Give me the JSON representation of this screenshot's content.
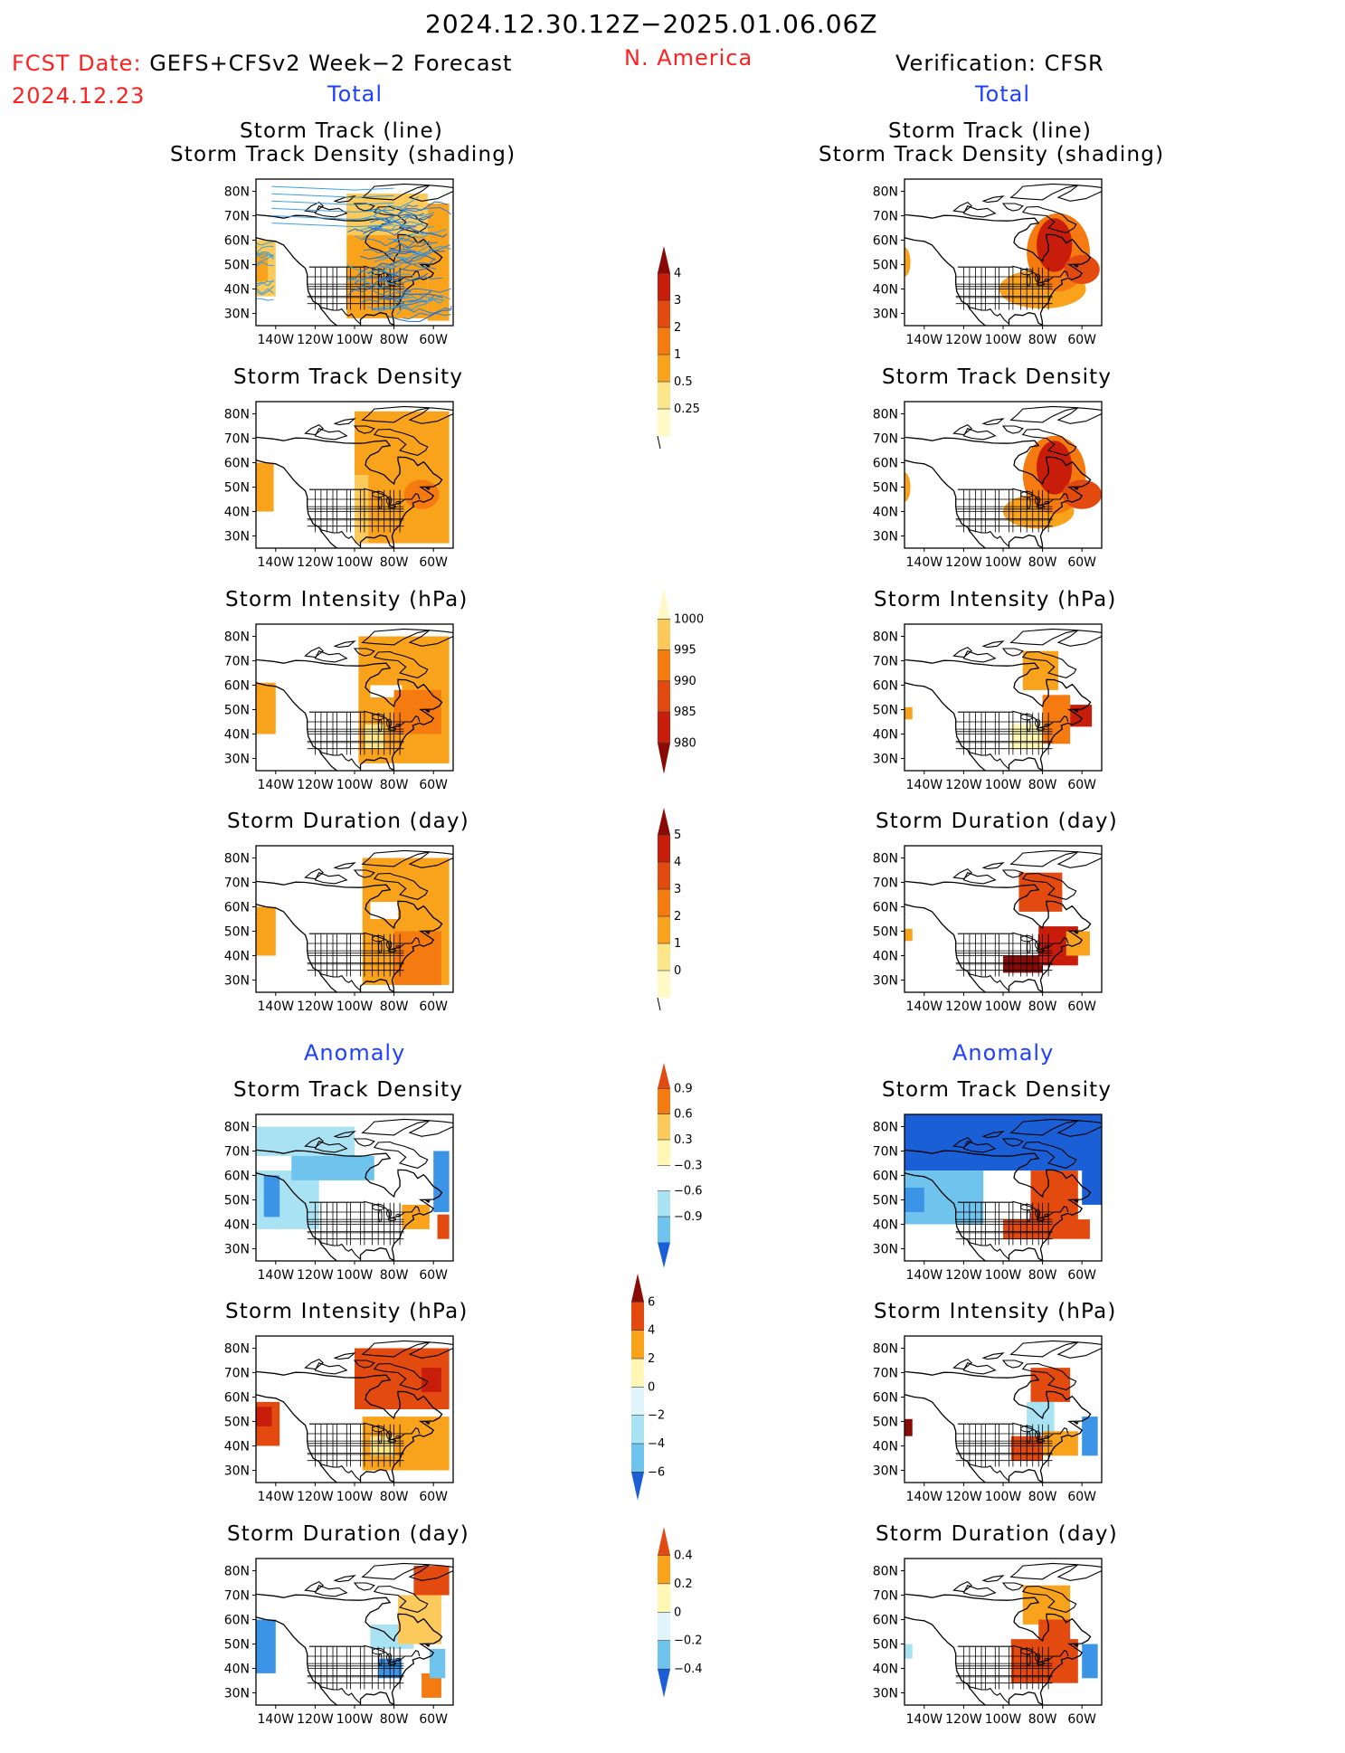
{
  "header": {
    "date_range": "2024.12.30.12Z−2025.01.06.06Z",
    "fcst_date_label": "FCST Date:",
    "fcst_product": "GEFS+CFSv2 Week−2 Forecast",
    "fcst_date": "2024.12.23",
    "region": "N. America",
    "verification": "Verification: CFSR"
  },
  "sections": {
    "total": "Total",
    "anomaly": "Anomaly"
  },
  "panel_titles": {
    "track_line": "Storm Track (line)",
    "track_density_shading": "Storm Track Density (shading)",
    "track_density": "Storm Track Density",
    "intensity": "Storm Intensity (hPa)",
    "duration": "Storm Duration (day)"
  },
  "axes": {
    "lat_labels": [
      "80N",
      "70N",
      "60N",
      "50N",
      "40N",
      "30N"
    ],
    "lon_labels": [
      "140W",
      "120W",
      "100W",
      "80W",
      "60W"
    ]
  },
  "colorbars": {
    "density_total": [
      "4",
      "3",
      "2",
      "1",
      "0.5",
      "0.25"
    ],
    "intensity_total": [
      "1000",
      "995",
      "990",
      "985",
      "980"
    ],
    "duration_total": [
      "5",
      "4",
      "3",
      "2",
      "1",
      "0"
    ],
    "density_anom": [
      "0.9",
      "0.6",
      "0.3",
      "−0.3",
      "−0.6",
      "−0.9"
    ],
    "intensity_anom": [
      "6",
      "4",
      "2",
      "0",
      "−2",
      "−4",
      "−6"
    ],
    "duration_anom": [
      "0.4",
      "0.2",
      "0",
      "−0.2",
      "−0.4"
    ]
  },
  "colors": {
    "pos": [
      "#fff7b3",
      "#fde68a",
      "#fcca5a",
      "#f9a21c",
      "#f57b10",
      "#e24a10",
      "#c81d0a",
      "#8a0a05"
    ],
    "neg": [
      "#dff4fb",
      "#a9e2f2",
      "#6fc4ee",
      "#3b94e6",
      "#1a5fd6"
    ]
  }
}
